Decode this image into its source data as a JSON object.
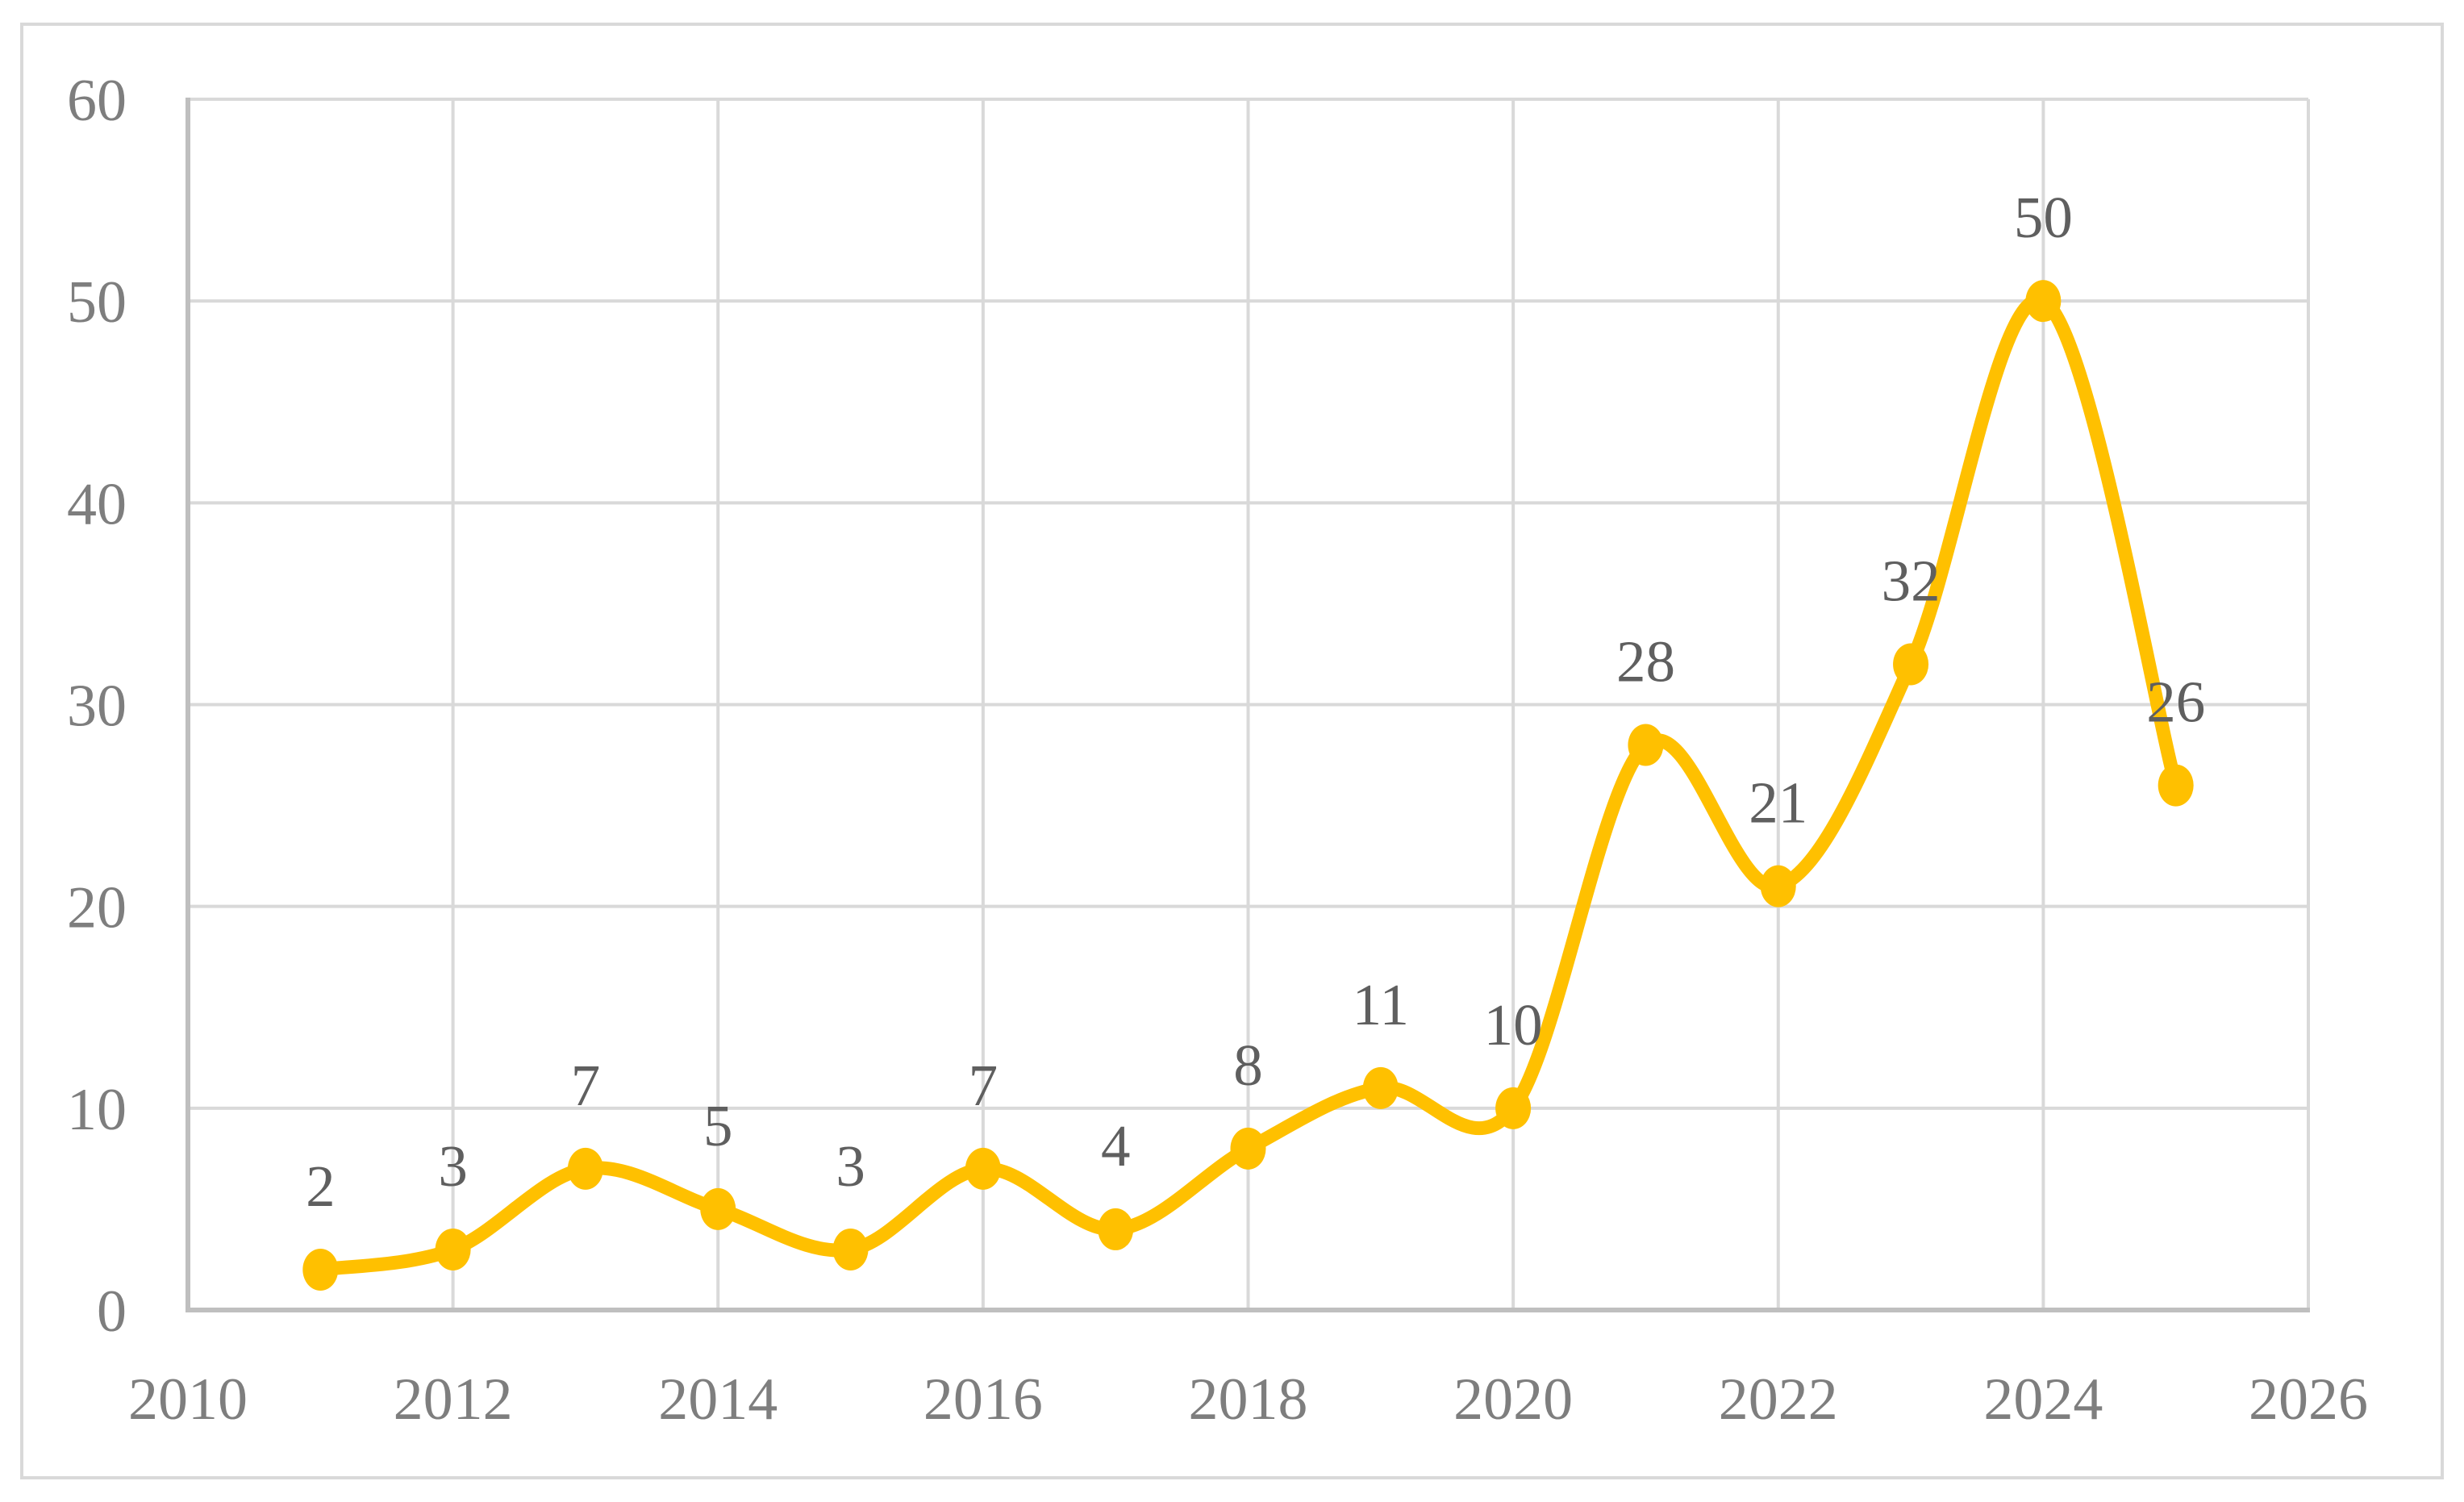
{
  "figure": {
    "background_color": "#FFFFFF",
    "outer_border_color": "#D9D9D9"
  },
  "chart_data": {
    "type": "line",
    "title": "",
    "xlabel": "",
    "ylabel": "",
    "x": [
      2011,
      2012,
      2013,
      2014,
      2015,
      2016,
      2017,
      2018,
      2019,
      2020,
      2021,
      2022,
      2023,
      2024,
      2025
    ],
    "values": [
      2,
      3,
      7,
      5,
      3,
      7,
      4,
      8,
      11,
      10,
      28,
      21,
      32,
      50,
      26
    ],
    "data_labels": [
      "2",
      "3",
      "7",
      "5",
      "3",
      "7",
      "4",
      "8",
      "11",
      "10",
      "28",
      "21",
      "32",
      "50",
      "26"
    ],
    "xlim": [
      2010,
      2026
    ],
    "ylim": [
      0,
      60
    ],
    "x_ticks": [
      2010,
      2012,
      2014,
      2016,
      2018,
      2020,
      2022,
      2024,
      2026
    ],
    "y_ticks": [
      0,
      10,
      20,
      30,
      40,
      50,
      60
    ],
    "grid": true,
    "legend": "none",
    "smooth_line": true,
    "marker": "circle",
    "colors": {
      "line": "#FFC000",
      "marker": "#FFC000",
      "data_label": "#5F5F5F",
      "tick_label": "#7E7E7E",
      "gridline": "#D9D9D9",
      "axis_line": "#BFBFBF",
      "outer_border": "#D9D9D9",
      "background": "#FFFFFF"
    }
  }
}
